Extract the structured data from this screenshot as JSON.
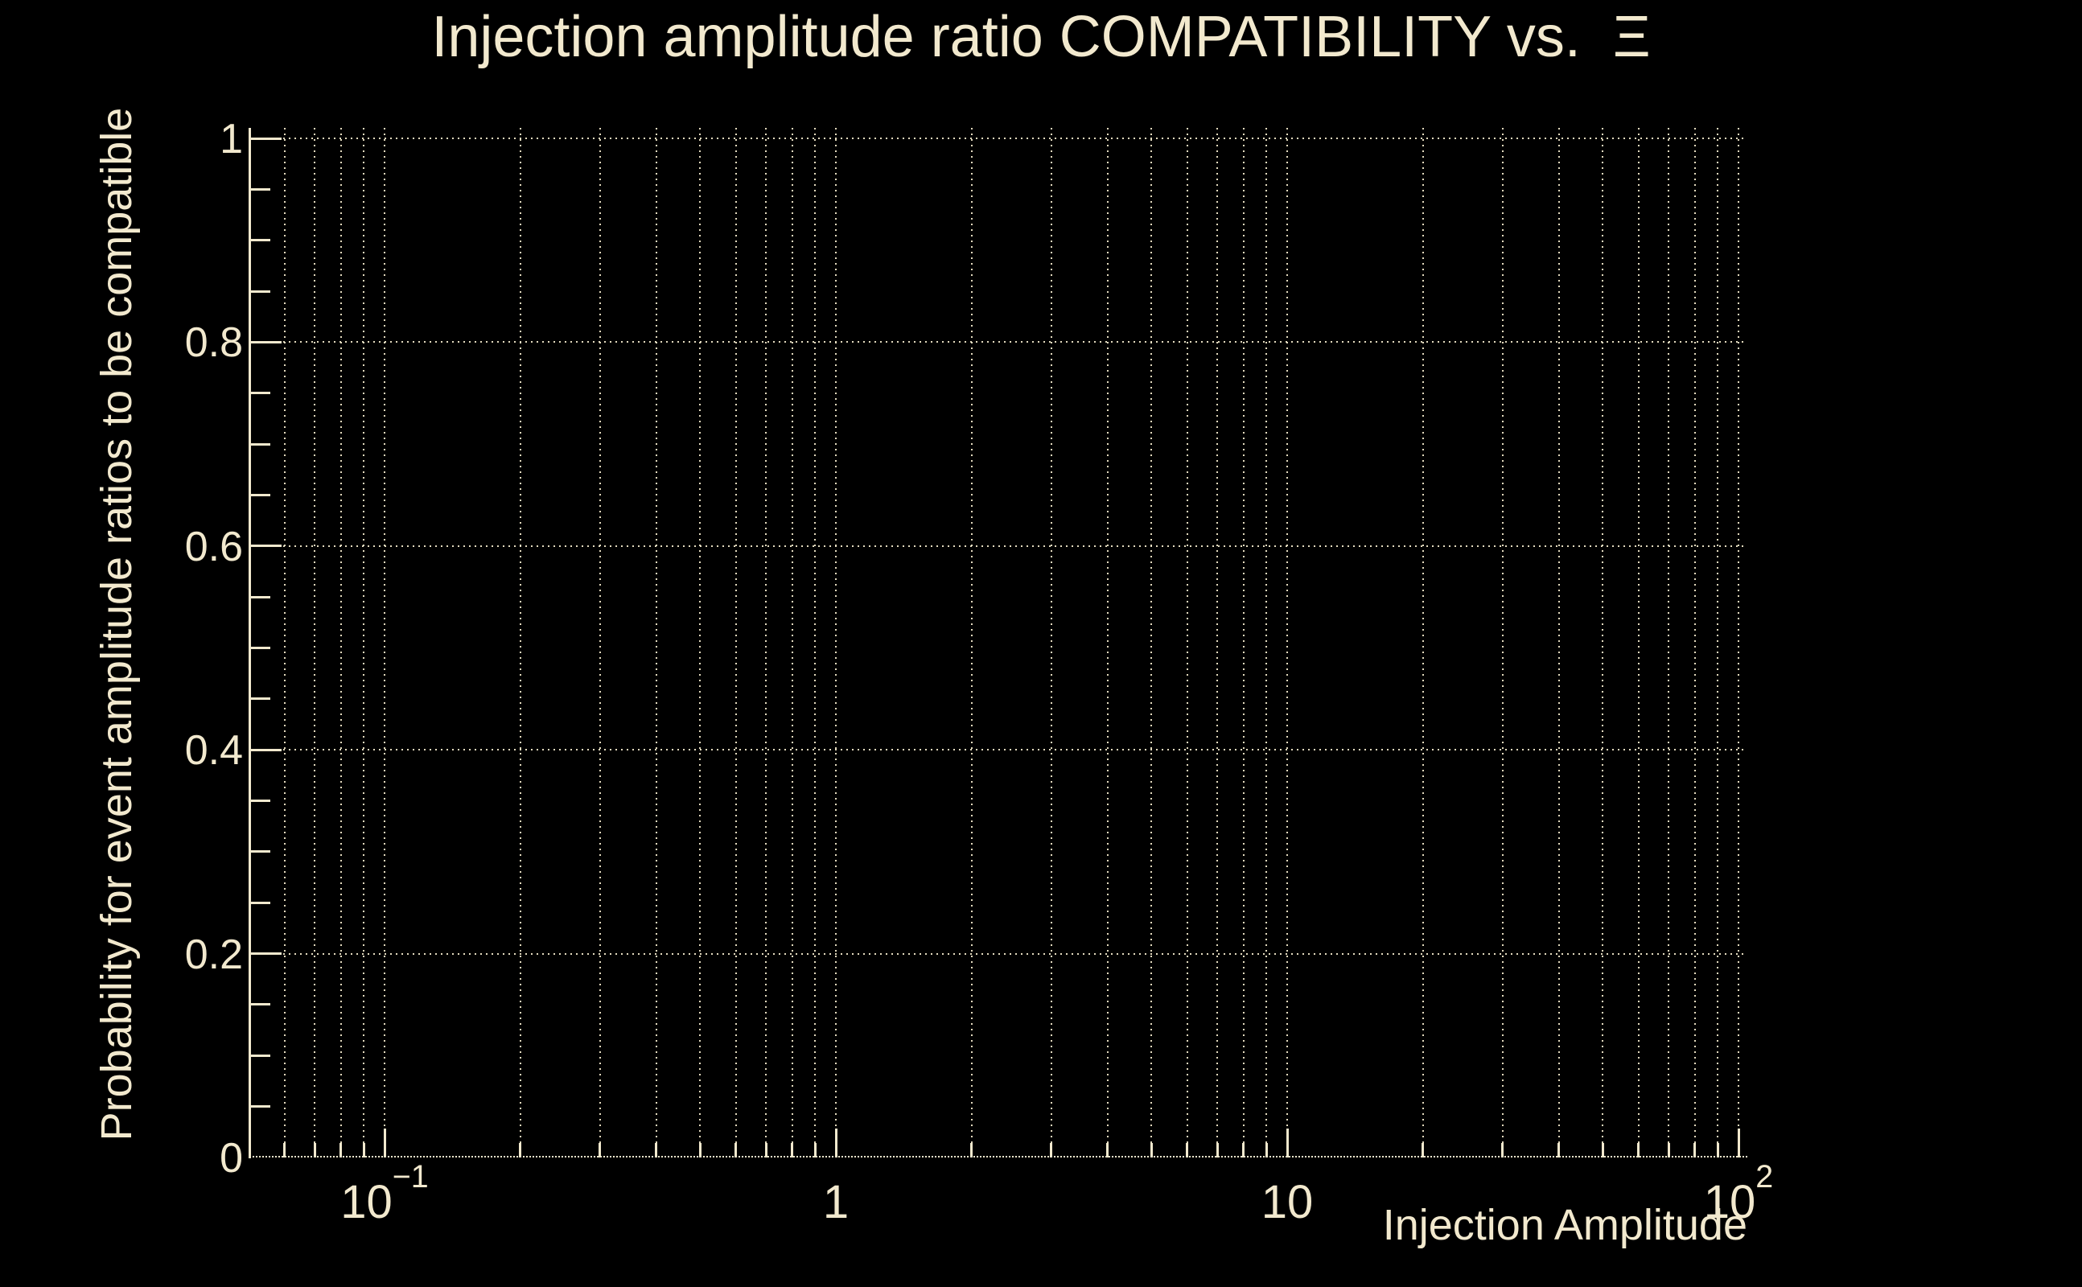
{
  "colors": {
    "background": "#000000",
    "foreground": "#f2e9ce",
    "grid": "#efe5c8"
  },
  "chart_data": {
    "type": "line",
    "title": "Injection amplitude ratio COMPATIBILITY vs.  Ξ",
    "xlabel": "Injection Amplitude",
    "ylabel": "Probability for event amplitude ratios to be compatible",
    "x_scale": "log",
    "y_scale": "linear",
    "xlim": [
      0.05,
      104.6
    ],
    "ylim": [
      0,
      1.01
    ],
    "grid": true,
    "grid_style": "dotted",
    "legend": "none",
    "series": [],
    "x_major_ticks": [
      {
        "value": 0.1,
        "base": "10",
        "exp": "−1"
      },
      {
        "value": 1,
        "base": "1",
        "exp": ""
      },
      {
        "value": 10,
        "base": "10",
        "exp": ""
      },
      {
        "value": 100,
        "base": "10",
        "exp": "2"
      }
    ],
    "x_minor_ticks_note": "log minor ticks at 2–9 of each decade, from 0.06 to 90",
    "y_major_ticks": [
      {
        "value": 0,
        "label": "0"
      },
      {
        "value": 0.2,
        "label": "0.2"
      },
      {
        "value": 0.4,
        "label": "0.4"
      },
      {
        "value": 0.6,
        "label": "0.6"
      },
      {
        "value": 0.8,
        "label": "0.8"
      },
      {
        "value": 1,
        "label": "1"
      }
    ],
    "y_minor_step": 0.05
  }
}
